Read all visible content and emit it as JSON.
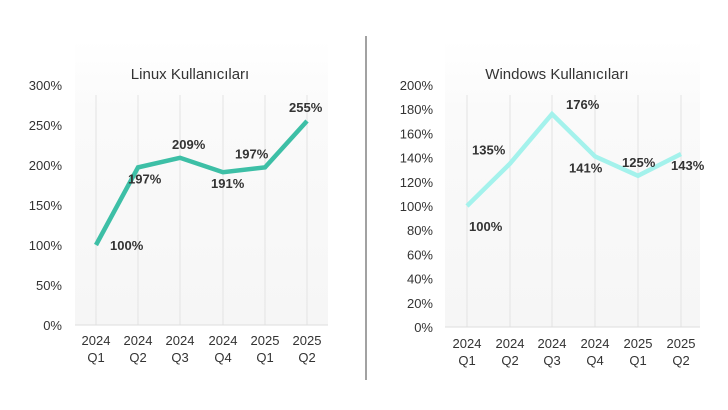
{
  "chart_data": [
    {
      "type": "line",
      "title": "Linux Kullanıcıları",
      "categories": [
        [
          "2024",
          "Q1"
        ],
        [
          "2024",
          "Q2"
        ],
        [
          "2024",
          "Q3"
        ],
        [
          "2024",
          "Q4"
        ],
        [
          "2025",
          "Q1"
        ],
        [
          "2025",
          "Q2"
        ]
      ],
      "series": [
        {
          "values": [
            100,
            197,
            209,
            191,
            197,
            255
          ]
        }
      ],
      "data_labels": [
        "100%",
        "197%",
        "209%",
        "191%",
        "197%",
        "255%"
      ],
      "yticks": [
        "0%",
        "50%",
        "100%",
        "150%",
        "200%",
        "250%",
        "300%"
      ],
      "ylim": [
        0,
        300
      ],
      "color": "#3dbfa6",
      "grid": "vertical"
    },
    {
      "type": "line",
      "title": "Windows Kullanıcıları",
      "categories": [
        [
          "2024",
          "Q1"
        ],
        [
          "2024",
          "Q2"
        ],
        [
          "2024",
          "Q3"
        ],
        [
          "2024",
          "Q4"
        ],
        [
          "2025",
          "Q1"
        ],
        [
          "2025",
          "Q2"
        ]
      ],
      "series": [
        {
          "values": [
            100,
            135,
            176,
            141,
            125,
            143
          ]
        }
      ],
      "data_labels": [
        "100%",
        "135%",
        "176%",
        "141%",
        "125%",
        "143%"
      ],
      "yticks": [
        "0%",
        "20%",
        "40%",
        "60%",
        "80%",
        "100%",
        "120%",
        "140%",
        "160%",
        "180%",
        "200%"
      ],
      "ylim": [
        0,
        200
      ],
      "color": "#a4f2ec",
      "grid": "vertical"
    }
  ]
}
